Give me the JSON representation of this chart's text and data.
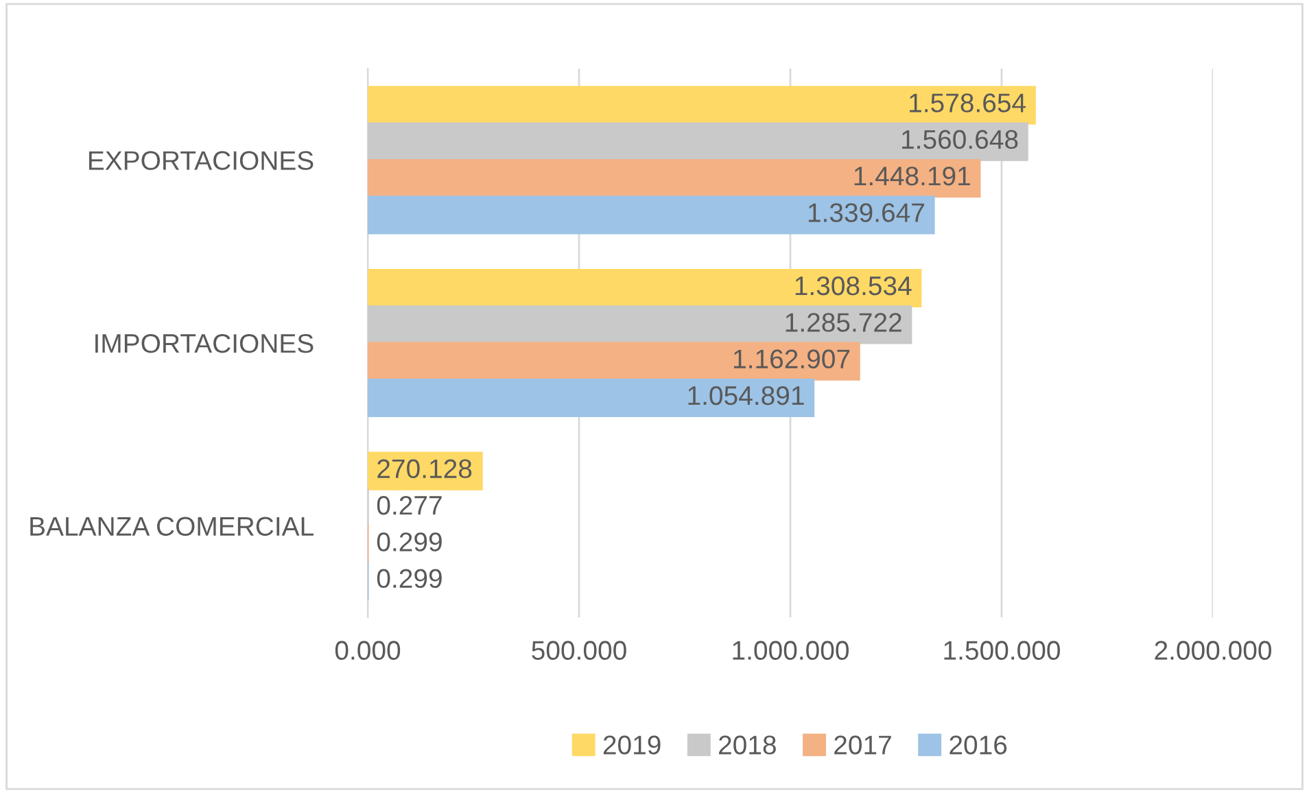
{
  "chart_data": {
    "type": "bar",
    "orientation": "horizontal",
    "categories": [
      "EXPORTACIONES",
      "IMPORTACIONES",
      "BALANZA COMERCIAL"
    ],
    "series": [
      {
        "name": "2019",
        "color": "#ffd966",
        "values": [
          1578654,
          1308534,
          270128
        ],
        "value_labels": [
          "1.578.654",
          "1.308.534",
          "270.128"
        ]
      },
      {
        "name": "2018",
        "color": "#c9c9c9",
        "values": [
          1560648,
          1285722,
          0.277
        ],
        "value_labels": [
          "1.560.648",
          "1.285.722",
          "0.277"
        ]
      },
      {
        "name": "2017",
        "color": "#f4b183",
        "values": [
          1448191,
          1162907,
          0.299
        ],
        "value_labels": [
          "1.448.191",
          "1.162.907",
          "0.299"
        ]
      },
      {
        "name": "2016",
        "color": "#9dc3e6",
        "values": [
          1339647,
          1054891,
          0.299
        ],
        "value_labels": [
          "1.339.647",
          "1.054.891",
          "0.299"
        ]
      }
    ],
    "xlim": [
      0,
      2000000
    ],
    "xticks": [
      {
        "value": 0,
        "label": "0.000"
      },
      {
        "value": 500000,
        "label": "500.000"
      },
      {
        "value": 1000000,
        "label": "1.000.000"
      },
      {
        "value": 1500000,
        "label": "1.500.000"
      },
      {
        "value": 2000000,
        "label": "2.000.000"
      }
    ],
    "grid": "x",
    "legend": "bottom"
  }
}
